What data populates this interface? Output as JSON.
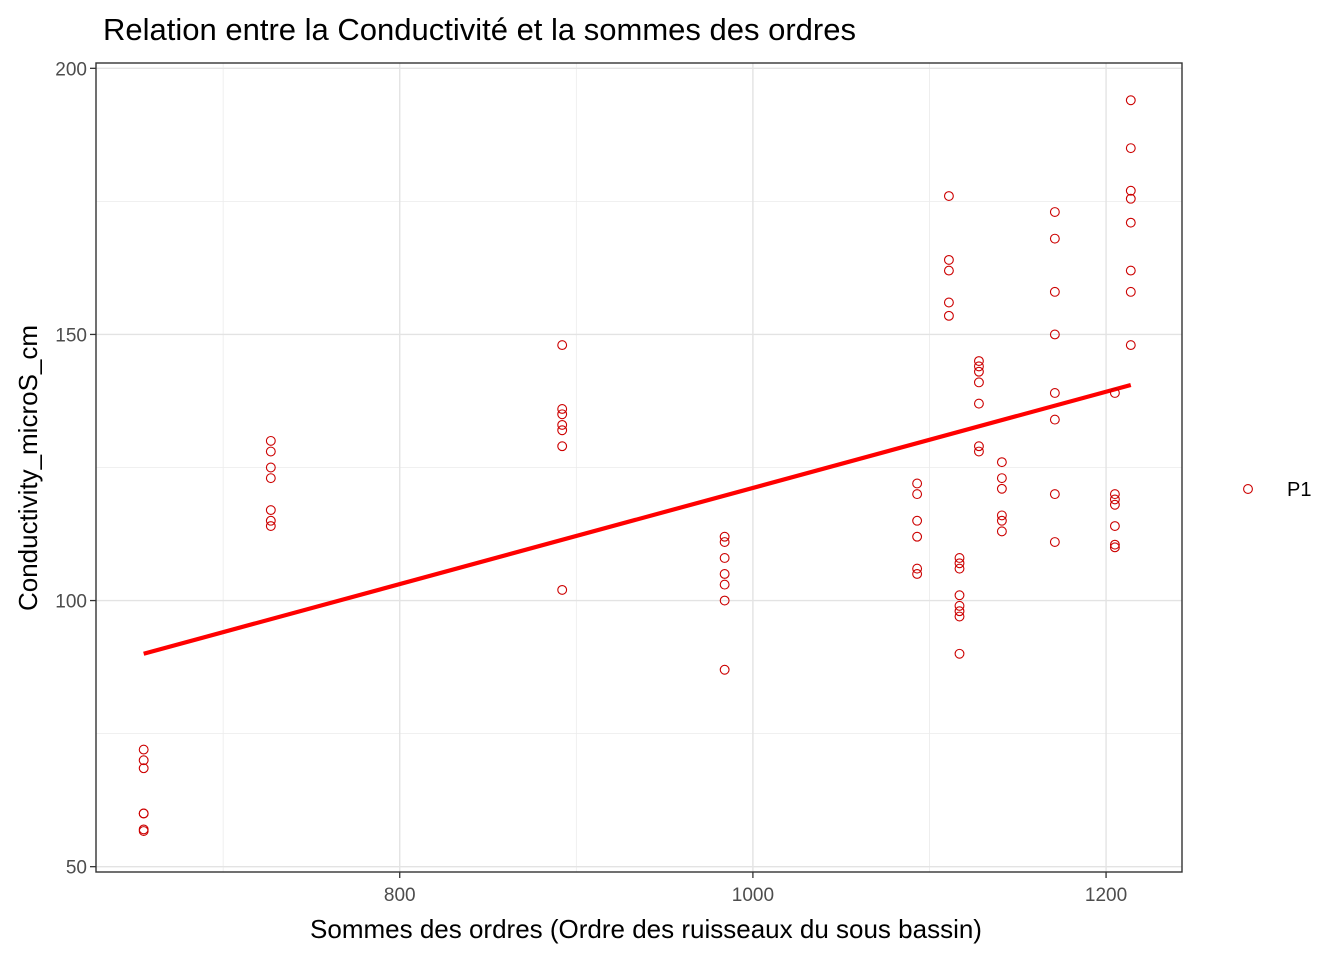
{
  "chart_data": {
    "type": "scatter",
    "title": "Relation entre la Conductivité et la sommes des ordres",
    "xlabel": "Sommes des ordres (Ordre des ruisseaux du sous bassin)",
    "ylabel": "Conductivity_microS_cm",
    "xlim": [
      628,
      1243
    ],
    "ylim": [
      49,
      201
    ],
    "x_ticks": [
      800,
      1000,
      1200
    ],
    "x_tick_labels": [
      "800",
      "1000",
      "1200"
    ],
    "y_ticks": [
      50,
      100,
      150,
      200
    ],
    "y_tick_labels": [
      "50",
      "100",
      "150",
      "200"
    ],
    "x_minor_ticks": [
      700,
      900,
      1100
    ],
    "y_minor_ticks": [
      75,
      125,
      175
    ],
    "grid": true,
    "legend_position": "right",
    "point_color": "#cc0000",
    "line_color": "#ff0000",
    "series": [
      {
        "name": "P1",
        "points": [
          [
            655,
            72
          ],
          [
            655,
            70
          ],
          [
            655,
            68.5
          ],
          [
            655,
            60
          ],
          [
            655,
            60
          ],
          [
            655,
            57
          ],
          [
            655,
            56.7
          ],
          [
            727,
            130
          ],
          [
            727,
            128
          ],
          [
            727,
            125
          ],
          [
            727,
            123
          ],
          [
            727,
            117
          ],
          [
            727,
            115
          ],
          [
            727,
            114
          ],
          [
            892,
            148
          ],
          [
            892,
            136
          ],
          [
            892,
            135
          ],
          [
            892,
            133
          ],
          [
            892,
            132
          ],
          [
            892,
            129
          ],
          [
            892,
            102
          ],
          [
            984,
            112
          ],
          [
            984,
            111
          ],
          [
            984,
            108
          ],
          [
            984,
            105
          ],
          [
            984,
            103
          ],
          [
            984,
            100
          ],
          [
            984,
            87
          ],
          [
            1093,
            122
          ],
          [
            1093,
            120
          ],
          [
            1093,
            115
          ],
          [
            1093,
            112
          ],
          [
            1093,
            106
          ],
          [
            1093,
            105
          ],
          [
            1111,
            176
          ],
          [
            1111,
            164
          ],
          [
            1111,
            162
          ],
          [
            1111,
            156
          ],
          [
            1111,
            153.5
          ],
          [
            1117,
            108
          ],
          [
            1117,
            107
          ],
          [
            1117,
            106
          ],
          [
            1117,
            101
          ],
          [
            1117,
            99
          ],
          [
            1117,
            98
          ],
          [
            1117,
            97
          ],
          [
            1117,
            90
          ],
          [
            1128,
            145
          ],
          [
            1128,
            144
          ],
          [
            1128,
            143
          ],
          [
            1128,
            141
          ],
          [
            1128,
            137
          ],
          [
            1128,
            129
          ],
          [
            1128,
            128
          ],
          [
            1141,
            126
          ],
          [
            1141,
            123
          ],
          [
            1141,
            121
          ],
          [
            1141,
            116
          ],
          [
            1141,
            115
          ],
          [
            1141,
            113
          ],
          [
            1171,
            173
          ],
          [
            1171,
            168
          ],
          [
            1171,
            158
          ],
          [
            1171,
            150
          ],
          [
            1171,
            139
          ],
          [
            1171,
            134
          ],
          [
            1171,
            120
          ],
          [
            1171,
            111
          ],
          [
            1205,
            120
          ],
          [
            1205,
            119
          ],
          [
            1205,
            118
          ],
          [
            1205,
            114
          ],
          [
            1205,
            110.5
          ],
          [
            1205,
            110
          ],
          [
            1205,
            139
          ],
          [
            1214,
            194
          ],
          [
            1214,
            185
          ],
          [
            1214,
            177
          ],
          [
            1214,
            175.5
          ],
          [
            1214,
            171
          ],
          [
            1214,
            162
          ],
          [
            1214,
            158
          ],
          [
            1214,
            148
          ]
        ]
      }
    ],
    "fit_line": {
      "x": [
        655,
        1214
      ],
      "y": [
        90,
        140.5
      ]
    }
  }
}
